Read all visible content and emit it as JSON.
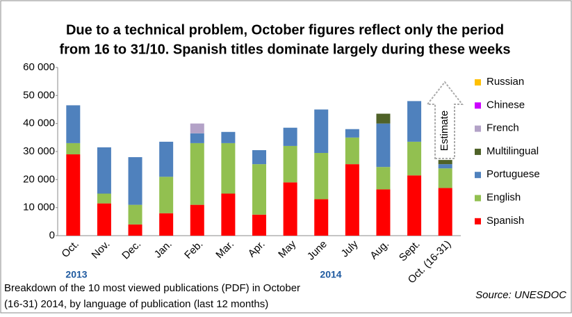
{
  "chart_data": {
    "type": "stacked_bar",
    "title": [
      "Due to a technical problem, October figures reflect only the period",
      "from 16 to 31/10. Spanish titles dominate largely during these weeks"
    ],
    "categories": [
      "Oct.",
      "Nov.",
      "Dec.",
      "Jan.",
      "Feb.",
      "Mar.",
      "Apr.",
      "May",
      "June",
      "July",
      "Aug.",
      "Sept.",
      "Oct. (16-31)"
    ],
    "series": [
      {
        "name": "Spanish",
        "color": "#ff0000",
        "values": [
          29000,
          11500,
          4000,
          8000,
          11000,
          15000,
          7500,
          19000,
          13000,
          25500,
          16500,
          21500,
          17000
        ]
      },
      {
        "name": "English",
        "color": "#92c050",
        "values": [
          4000,
          3500,
          7000,
          13000,
          22000,
          18000,
          18000,
          13000,
          16500,
          9500,
          8000,
          12000,
          7000
        ]
      },
      {
        "name": "Portuguese",
        "color": "#4f81bd",
        "values": [
          13500,
          16500,
          17000,
          12500,
          3500,
          4000,
          5000,
          6500,
          15500,
          3000,
          15500,
          14500,
          1500
        ]
      },
      {
        "name": "Multilingual",
        "color": "#4f6228",
        "values": [
          0,
          0,
          0,
          0,
          0,
          0,
          0,
          0,
          0,
          0,
          3500,
          0,
          1500
        ]
      },
      {
        "name": "French",
        "color": "#b3a2c7",
        "values": [
          0,
          0,
          0,
          0,
          3500,
          0,
          0,
          0,
          0,
          0,
          0,
          0,
          0
        ]
      },
      {
        "name": "Chinese",
        "color": "#cc00ff",
        "values": [
          0,
          0,
          0,
          0,
          0,
          0,
          0,
          0,
          0,
          0,
          0,
          0,
          0
        ]
      },
      {
        "name": "Russian",
        "color": "#ffc000",
        "values": [
          0,
          0,
          0,
          0,
          0,
          0,
          0,
          0,
          0,
          0,
          0,
          0,
          0
        ]
      }
    ],
    "ylim": [
      0,
      60000
    ],
    "yticks": [
      0,
      {
        "value": 10000,
        "label": "10 000"
      },
      {
        "value": 20000,
        "label": "20 000"
      },
      {
        "value": 30000,
        "label": "30 000"
      },
      {
        "value": 40000,
        "label": "40 000"
      },
      {
        "value": 50000,
        "label": "50 000"
      },
      {
        "value": 60000,
        "label": "60 000"
      }
    ],
    "year_labels": [
      "2013",
      "2014"
    ],
    "annotation": "Estimate",
    "caption": [
      "Breakdown of the 10 most viewed publications  (PDF) in October",
      "(16-31) 2014, by language of publication (last 12 months)"
    ],
    "source": "Source: UNESDOC"
  }
}
